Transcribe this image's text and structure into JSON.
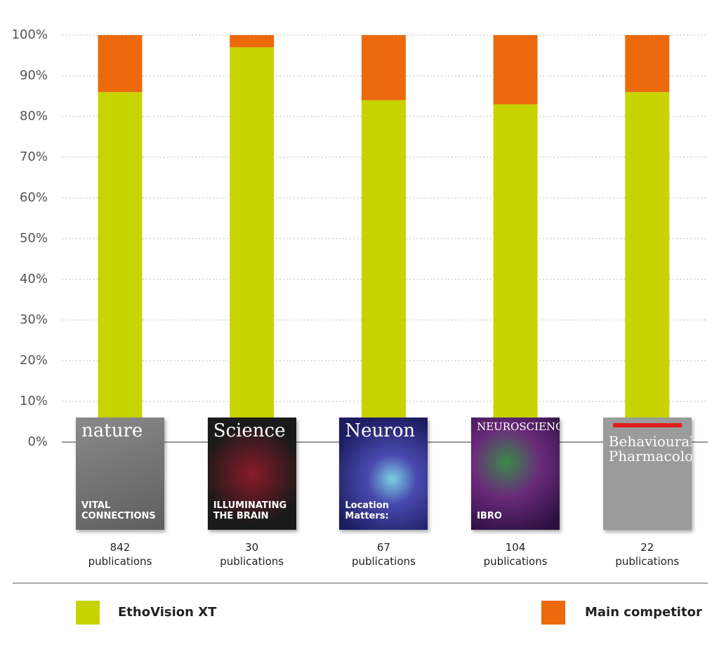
{
  "chart_data": {
    "type": "stacked-bar",
    "categories": [
      "842 publications",
      "30 publications",
      "67 publications",
      "104 publications",
      "22 publications"
    ],
    "series": [
      {
        "name": "EthoVision XT",
        "color": "#c8d400",
        "values": [
          86,
          97,
          84,
          83,
          86
        ]
      },
      {
        "name": "Main competitor",
        "color": "#ec6a0c",
        "values": [
          14,
          3,
          16,
          17,
          14
        ]
      }
    ],
    "ylim": [
      0,
      100
    ],
    "yticks": [
      {
        "value": 0,
        "label": "0%"
      },
      {
        "value": 10,
        "label": "10%"
      },
      {
        "value": 20,
        "label": "20%"
      },
      {
        "value": 30,
        "label": "30%"
      },
      {
        "value": 40,
        "label": "40%"
      },
      {
        "value": 50,
        "label": "50%"
      },
      {
        "value": 60,
        "label": "60%"
      },
      {
        "value": 70,
        "label": "70%"
      },
      {
        "value": 80,
        "label": "80%"
      },
      {
        "value": 90,
        "label": "90%"
      },
      {
        "value": 100,
        "label": "100%"
      }
    ],
    "grid": true,
    "covers": [
      {
        "title": "nature",
        "headline": "VITAL CONNECTIONS"
      },
      {
        "title": "Science",
        "headline": "ILLUMINATING THE BRAIN"
      },
      {
        "title": "Neuron",
        "headline": "Location Matters:"
      },
      {
        "title": "NEUROSCIENCE",
        "headline": "IBRO"
      },
      {
        "title": "Behavioural Pharmacology"
      }
    ]
  }
}
